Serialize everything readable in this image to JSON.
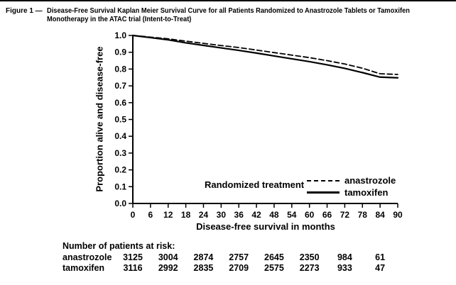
{
  "figure": {
    "label": "Figure 1 —",
    "title_lines": [
      "Disease-Free Survival Kaplan Meier Survival Curve for all Patients Randomized to Anastrozole Tablets or Tamoxifen",
      "Monotherapy in the ATAC trial (Intent-to-Treat)"
    ]
  },
  "chart_data": {
    "type": "line",
    "title": "",
    "xlabel": "Disease-free survival in months",
    "ylabel": "Proportion alive and disease-free",
    "xlim": [
      0,
      90
    ],
    "ylim": [
      0.0,
      1.0
    ],
    "x_ticks": [
      "0",
      "6",
      "12",
      "18",
      "24",
      "30",
      "36",
      "42",
      "48",
      "54",
      "60",
      "66",
      "72",
      "78",
      "84",
      "90"
    ],
    "y_ticks": [
      "0.0",
      "0.1",
      "0.2",
      "0.3",
      "0.4",
      "0.5",
      "0.6",
      "0.7",
      "0.8",
      "0.9",
      "1.0"
    ],
    "grid": false,
    "legend_title": "Randomized treatment",
    "legend_position": "inside-bottom-right",
    "line_color": "#000000",
    "series": [
      {
        "name": "anastrozole",
        "line_style": "dashed",
        "x": [
          0,
          6,
          12,
          18,
          24,
          30,
          36,
          42,
          48,
          54,
          60,
          66,
          72,
          78,
          84,
          90
        ],
        "y": [
          1.0,
          0.99,
          0.98,
          0.966,
          0.953,
          0.94,
          0.928,
          0.913,
          0.898,
          0.883,
          0.868,
          0.85,
          0.83,
          0.805,
          0.772,
          0.768
        ]
      },
      {
        "name": "tamoxifen",
        "line_style": "solid",
        "x": [
          0,
          6,
          12,
          18,
          24,
          30,
          36,
          42,
          48,
          54,
          60,
          66,
          72,
          78,
          84,
          90
        ],
        "y": [
          1.0,
          0.987,
          0.974,
          0.956,
          0.941,
          0.926,
          0.911,
          0.895,
          0.878,
          0.861,
          0.844,
          0.825,
          0.804,
          0.779,
          0.752,
          0.748
        ]
      }
    ]
  },
  "at_risk": {
    "heading": "Number of patients at risk:",
    "months": [
      0,
      12,
      24,
      36,
      48,
      60,
      72,
      84
    ],
    "rows": [
      {
        "name": "anastrozole",
        "values": [
          "3125",
          "3004",
          "2874",
          "2757",
          "2645",
          "2350",
          "984",
          "61"
        ]
      },
      {
        "name": "tamoxifen",
        "values": [
          "3116",
          "2992",
          "2835",
          "2709",
          "2575",
          "2273",
          "933",
          "47"
        ]
      }
    ]
  }
}
